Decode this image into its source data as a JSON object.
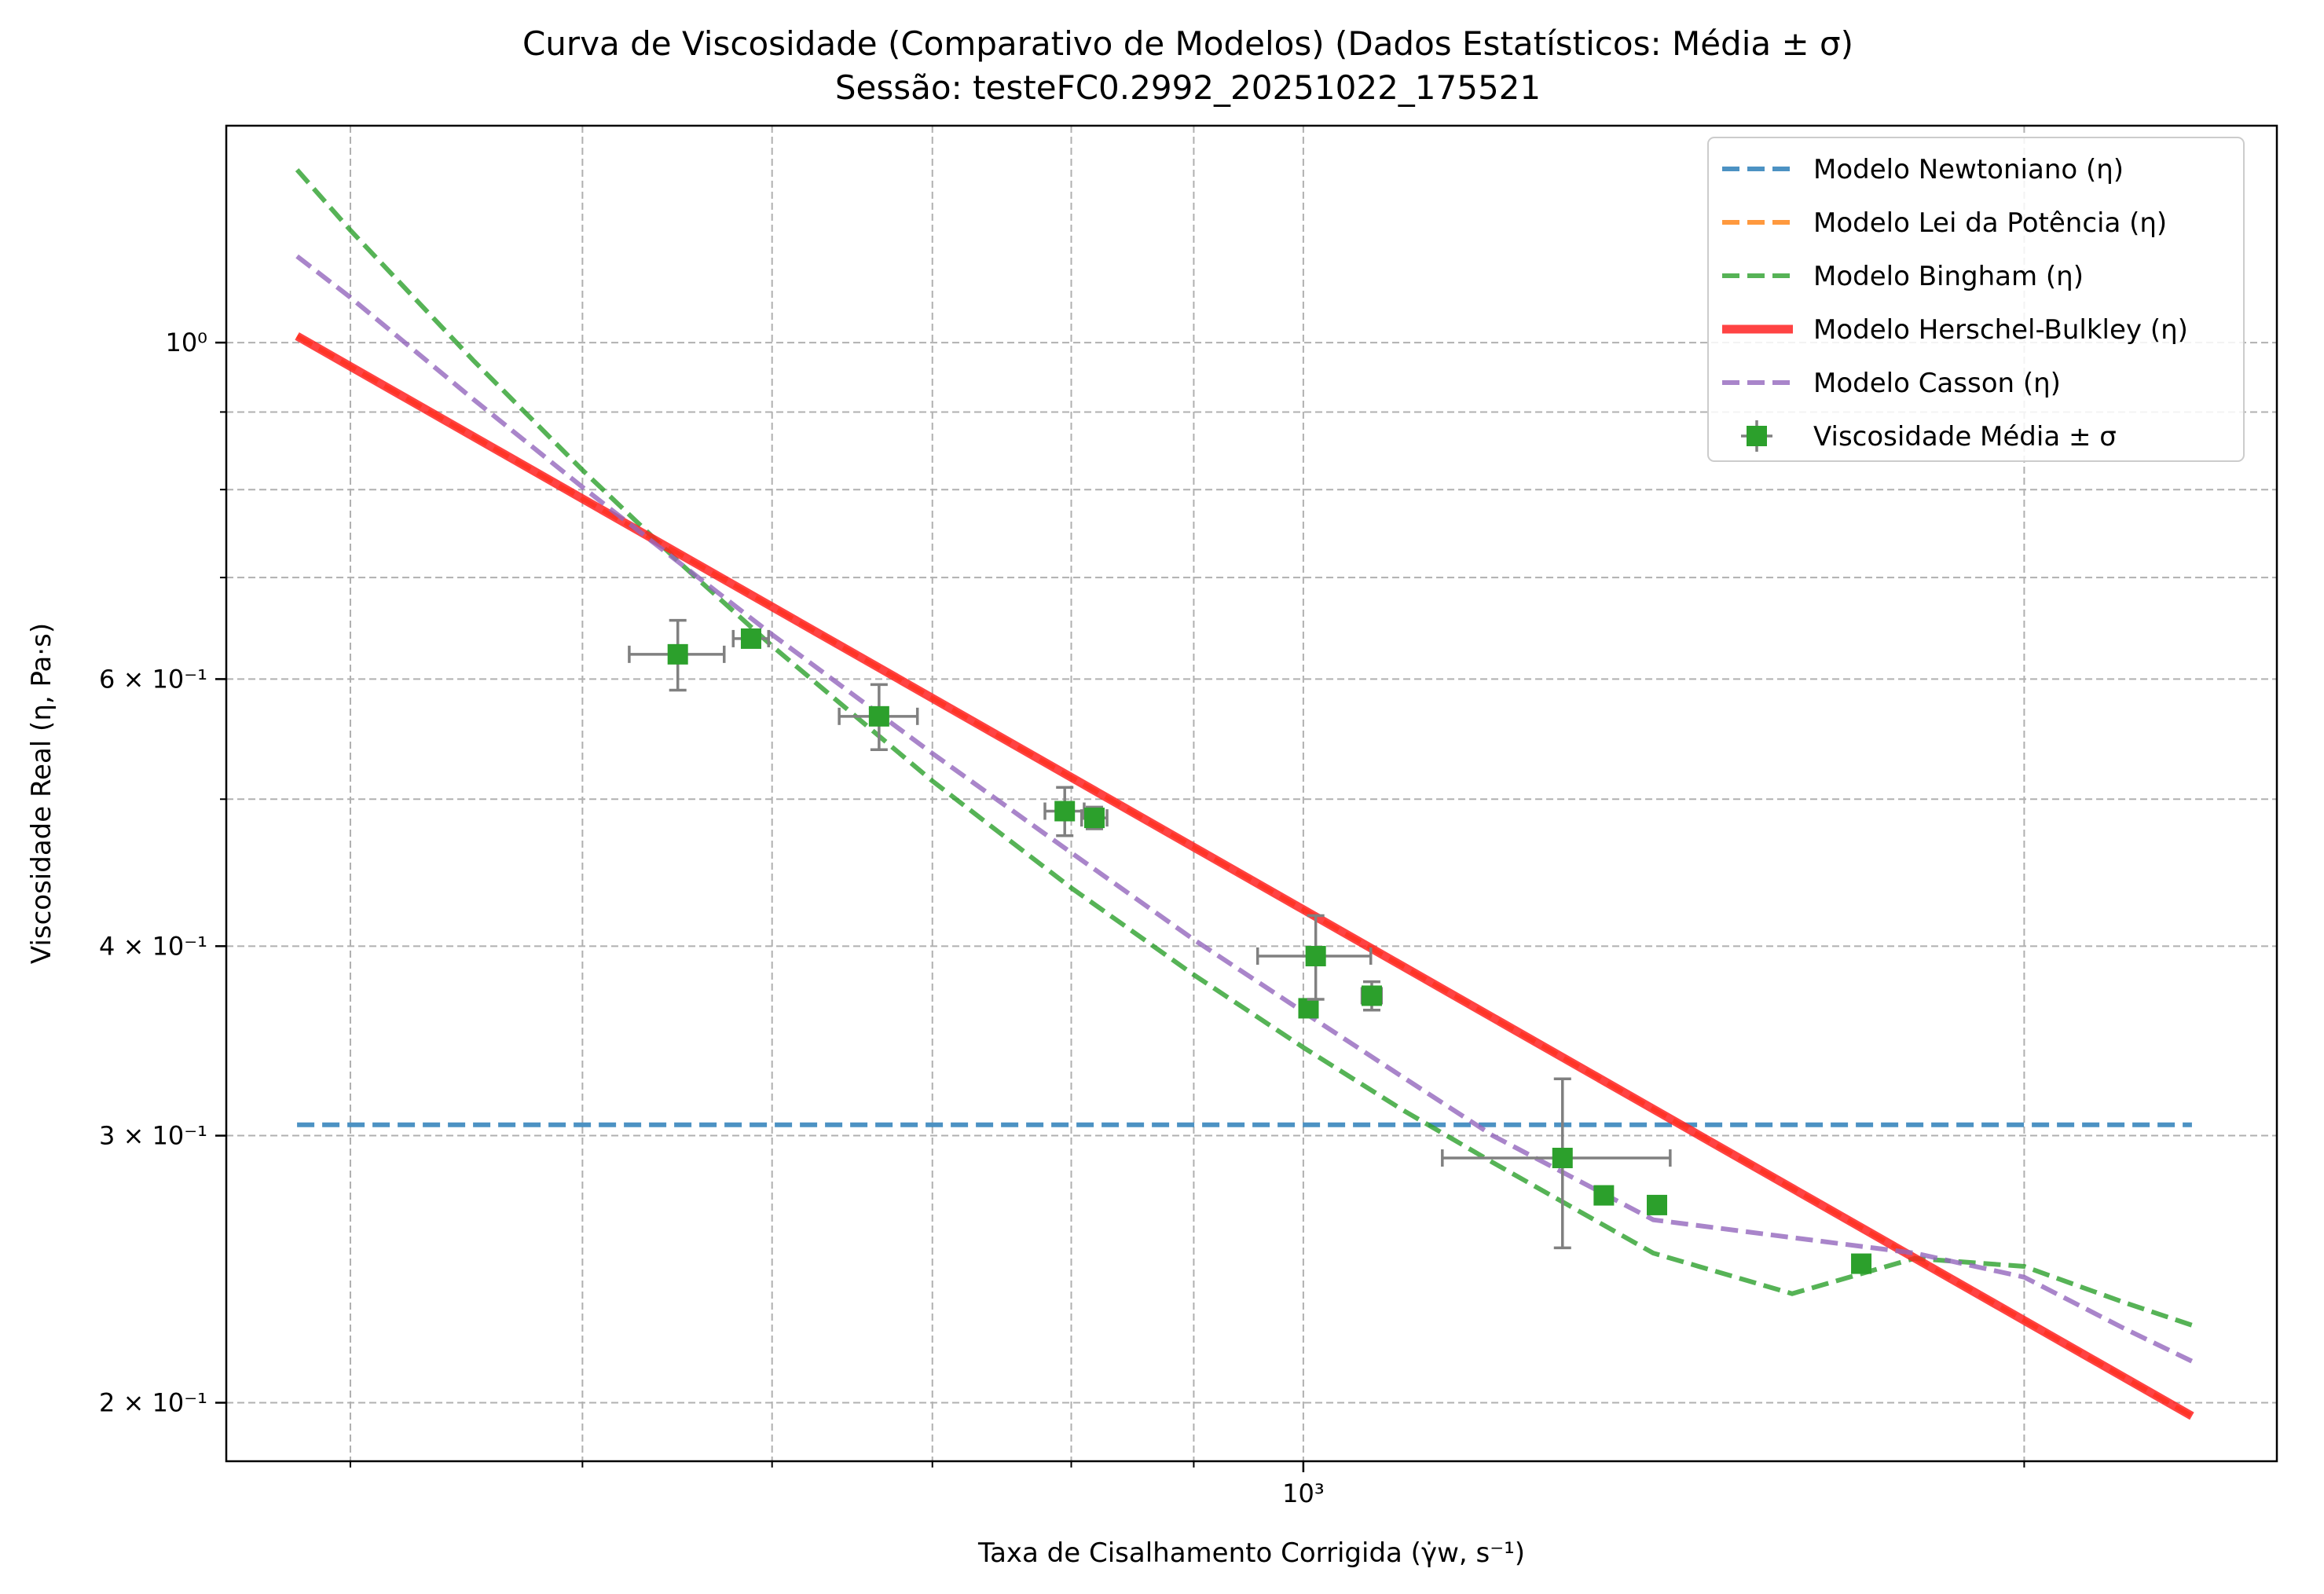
{
  "chart_data": {
    "type": "line",
    "title": "Curva de Viscosidade (Comparativo de Modelos) (Dados Estatísticos: Média ± σ)",
    "subtitle": "Sessão: testeFC0.2992_20251022_175521",
    "xlabel": "Taxa de Cisalhamento Corrigida (γ̇w, s⁻¹)",
    "ylabel": "Viscosidade Real (η, Pa·s)",
    "xscale": "log",
    "yscale": "log",
    "xlim": [
      355,
      2550
    ],
    "ylim": [
      0.183,
      1.39
    ],
    "grid": true,
    "legend_position": "top-right",
    "x_ticks": [
      {
        "value": 1000,
        "label": "10³"
      }
    ],
    "y_ticks": [
      {
        "value": 1.0,
        "label": "10⁰"
      },
      {
        "value": 0.6,
        "label": "6 × 10⁻¹"
      },
      {
        "value": 0.4,
        "label": "4 × 10⁻¹"
      },
      {
        "value": 0.3,
        "label": "3 × 10⁻¹"
      },
      {
        "value": 0.2,
        "label": "2 × 10⁻¹"
      }
    ],
    "x_minor_gridlines": [
      400,
      500,
      600,
      700,
      800,
      900,
      2000
    ],
    "y_minor_gridlines": [
      0.9,
      0.8,
      0.7,
      0.5
    ],
    "series": [
      {
        "name": "Modelo Newtoniano (η)",
        "style": "dashed",
        "color": "#1f77b4",
        "x": [
          380,
          2350
        ],
        "y": [
          0.305,
          0.305
        ]
      },
      {
        "name": "Modelo Lei da Potência (η)",
        "style": "dashed",
        "color": "#ff7f0e",
        "x": [
          380,
          2350
        ],
        "y": [
          1.01,
          0.196
        ]
      },
      {
        "name": "Modelo Bingham (η)",
        "style": "dashed",
        "color": "#2ca02c",
        "x": [
          380,
          400,
          450,
          500,
          550,
          600,
          700,
          800,
          900,
          1000,
          1100,
          1200,
          1400,
          1600,
          1800,
          2000,
          2200,
          2350
        ],
        "y": [
          1.3,
          1.186,
          0.974,
          0.824,
          0.714,
          0.631,
          0.514,
          0.437,
          0.383,
          0.343,
          0.312,
          0.288,
          0.251,
          0.236,
          0.249,
          0.246,
          0.233,
          0.225
        ]
      },
      {
        "name": "Modelo Herschel-Bulkley (η)",
        "style": "solid",
        "color": "#ff2222",
        "x": [
          380,
          2350
        ],
        "y": [
          1.01,
          0.196
        ]
      },
      {
        "name": "Modelo Casson (η)",
        "style": "dashed",
        "color": "#9467bd",
        "x": [
          380,
          400,
          450,
          500,
          550,
          600,
          700,
          800,
          900,
          1000,
          1100,
          1200,
          1400,
          1600,
          1800,
          2000,
          2200,
          2350
        ],
        "y": [
          1.14,
          1.071,
          0.918,
          0.803,
          0.714,
          0.642,
          0.536,
          0.461,
          0.404,
          0.362,
          0.328,
          0.3,
          0.264,
          0.257,
          0.251,
          0.242,
          0.224,
          0.213
        ]
      },
      {
        "name": "Viscosidade Média ± σ",
        "style": "markers",
        "color": "#2ca02c",
        "points": [
          {
            "x": 548,
            "y": 0.623,
            "xerr": 25,
            "yerr": 0.033
          },
          {
            "x": 588,
            "y": 0.638,
            "xerr": 10,
            "yerr": 0.006
          },
          {
            "x": 665,
            "y": 0.567,
            "xerr": 25,
            "yerr": 0.028
          },
          {
            "x": 795,
            "y": 0.491,
            "xerr": 15,
            "yerr": 0.018
          },
          {
            "x": 818,
            "y": 0.486,
            "xerr": 10,
            "yerr": 0.008
          },
          {
            "x": 1005,
            "y": 0.364,
            "xerr": 5,
            "yerr": 0.003
          },
          {
            "x": 1012,
            "y": 0.394,
            "xerr": 55,
            "yerr": 0.025
          },
          {
            "x": 1068,
            "y": 0.371,
            "xerr": 10,
            "yerr": 0.008
          },
          {
            "x": 1283,
            "y": 0.29,
            "xerr": 140,
            "yerr": 0.037
          },
          {
            "x": 1335,
            "y": 0.274,
            "xerr": 5,
            "yerr": 0.003
          },
          {
            "x": 1405,
            "y": 0.27,
            "xerr": 5,
            "yerr": 0.003
          },
          {
            "x": 1710,
            "y": 0.247,
            "xerr": 10,
            "yerr": 0.003
          }
        ]
      }
    ]
  }
}
